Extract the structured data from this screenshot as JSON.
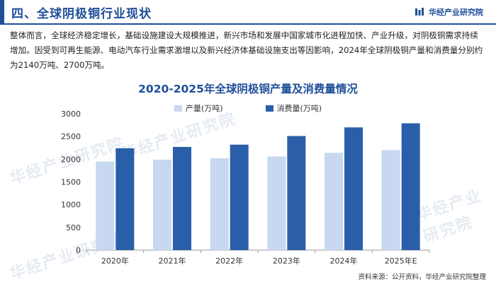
{
  "header": {
    "title": "四、全球阴极铜行业现状",
    "brand": "华经产业研究院"
  },
  "paragraph": "整体而言，全球经济稳定增长，基础设施建设大规模推进，新兴市场和发展中国家城市化进程加快、产业升级，对阴极铜需求持续增加。因受到可再生能源、电动汽车行业需求激增以及新兴经济体基础设施支出等因影响，2024年全球阴极铜产量和消费量分别约为2140万吨、2700万吨。",
  "watermarks": [
    "华经产业研究院",
    "华经产业研究院",
    "华经产业研究院",
    "华经产业研究院"
  ],
  "source": "资料来源：公开资料，华经产业研究院整理",
  "chart_data": {
    "type": "bar",
    "title": "2020-2025年全球阴极铜产量及消费量情况",
    "categories": [
      "2020年",
      "2021年",
      "2022年",
      "2023年",
      "2024年",
      "2025年E"
    ],
    "series": [
      {
        "name": "产量(万吨)",
        "values": [
          1950,
          1990,
          2020,
          2060,
          2140,
          2200
        ],
        "color": "#c7d8f0"
      },
      {
        "name": "消费量(万吨)",
        "values": [
          2240,
          2270,
          2320,
          2510,
          2700,
          2790
        ],
        "color": "#2a5ea8"
      }
    ],
    "ylim": [
      0,
      3000
    ],
    "yticks": [
      0,
      500,
      1000,
      1500,
      2000,
      2500,
      3000
    ],
    "grid": false,
    "legend": "top-center"
  }
}
